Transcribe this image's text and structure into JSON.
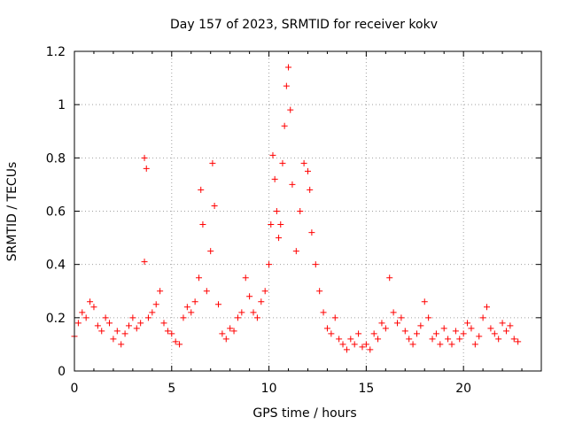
{
  "chart_data": {
    "type": "scatter",
    "title": "Day 157 of 2023, SRMTID for receiver kokv",
    "xlabel": "GPS time / hours",
    "ylabel": "SRMTID / TECUs",
    "xlim": [
      0,
      24
    ],
    "ylim": [
      0,
      1.2
    ],
    "xticks": [
      0,
      5,
      10,
      15,
      20
    ],
    "xtick_labels": [
      "0",
      "5",
      "10",
      "15",
      "20"
    ],
    "yticks": [
      0,
      0.2,
      0.4,
      0.6,
      0.8,
      1,
      1.2
    ],
    "ytick_labels": [
      "0",
      "0.2",
      "0.4",
      "0.6",
      "0.8",
      "1",
      "1.2"
    ],
    "grid": true,
    "marker": "plus",
    "series": [
      {
        "name": "SRMTID",
        "color": "#ff0000",
        "x": [
          0.0,
          0.2,
          0.4,
          0.6,
          0.8,
          1.0,
          1.2,
          1.4,
          1.6,
          1.8,
          2.0,
          2.2,
          2.4,
          2.6,
          2.8,
          3.0,
          3.2,
          3.4,
          3.6,
          3.6,
          3.7,
          3.8,
          4.0,
          4.2,
          4.4,
          4.6,
          4.8,
          5.0,
          5.2,
          5.4,
          5.6,
          5.8,
          6.0,
          6.2,
          6.4,
          6.5,
          6.6,
          6.8,
          7.0,
          7.1,
          7.2,
          7.4,
          7.6,
          7.8,
          8.0,
          8.2,
          8.4,
          8.6,
          8.8,
          9.0,
          9.2,
          9.4,
          9.6,
          9.8,
          10.0,
          10.1,
          10.2,
          10.3,
          10.4,
          10.5,
          10.6,
          10.7,
          10.8,
          10.9,
          11.0,
          11.1,
          11.2,
          11.4,
          11.6,
          11.8,
          12.0,
          12.1,
          12.2,
          12.4,
          12.6,
          12.8,
          13.0,
          13.2,
          13.4,
          13.6,
          13.8,
          14.0,
          14.2,
          14.4,
          14.6,
          14.8,
          15.0,
          15.2,
          15.4,
          15.6,
          15.8,
          16.0,
          16.2,
          16.4,
          16.6,
          16.8,
          17.0,
          17.2,
          17.4,
          17.6,
          17.8,
          18.0,
          18.2,
          18.4,
          18.6,
          18.8,
          19.0,
          19.2,
          19.4,
          19.6,
          19.8,
          20.0,
          20.2,
          20.4,
          20.6,
          20.8,
          21.0,
          21.2,
          21.4,
          21.6,
          21.8,
          22.0,
          22.2,
          22.4,
          22.6,
          22.8
        ],
        "y": [
          0.13,
          0.18,
          0.22,
          0.2,
          0.26,
          0.24,
          0.17,
          0.15,
          0.2,
          0.18,
          0.12,
          0.15,
          0.1,
          0.14,
          0.17,
          0.2,
          0.16,
          0.18,
          0.8,
          0.41,
          0.76,
          0.2,
          0.22,
          0.25,
          0.3,
          0.18,
          0.15,
          0.14,
          0.11,
          0.1,
          0.2,
          0.24,
          0.22,
          0.26,
          0.35,
          0.68,
          0.55,
          0.3,
          0.45,
          0.78,
          0.62,
          0.25,
          0.14,
          0.12,
          0.16,
          0.15,
          0.2,
          0.22,
          0.35,
          0.28,
          0.22,
          0.2,
          0.26,
          0.3,
          0.4,
          0.55,
          0.81,
          0.72,
          0.6,
          0.5,
          0.55,
          0.78,
          0.92,
          1.07,
          1.14,
          0.98,
          0.7,
          0.45,
          0.6,
          0.78,
          0.75,
          0.68,
          0.52,
          0.4,
          0.3,
          0.22,
          0.16,
          0.14,
          0.2,
          0.12,
          0.1,
          0.08,
          0.12,
          0.1,
          0.14,
          0.09,
          0.1,
          0.08,
          0.14,
          0.12,
          0.18,
          0.16,
          0.35,
          0.22,
          0.18,
          0.2,
          0.15,
          0.12,
          0.1,
          0.14,
          0.17,
          0.26,
          0.2,
          0.12,
          0.14,
          0.1,
          0.16,
          0.12,
          0.1,
          0.15,
          0.12,
          0.14,
          0.18,
          0.16,
          0.1,
          0.13,
          0.2,
          0.24,
          0.16,
          0.14,
          0.12,
          0.18,
          0.15,
          0.17,
          0.12,
          0.11
        ]
      }
    ]
  }
}
